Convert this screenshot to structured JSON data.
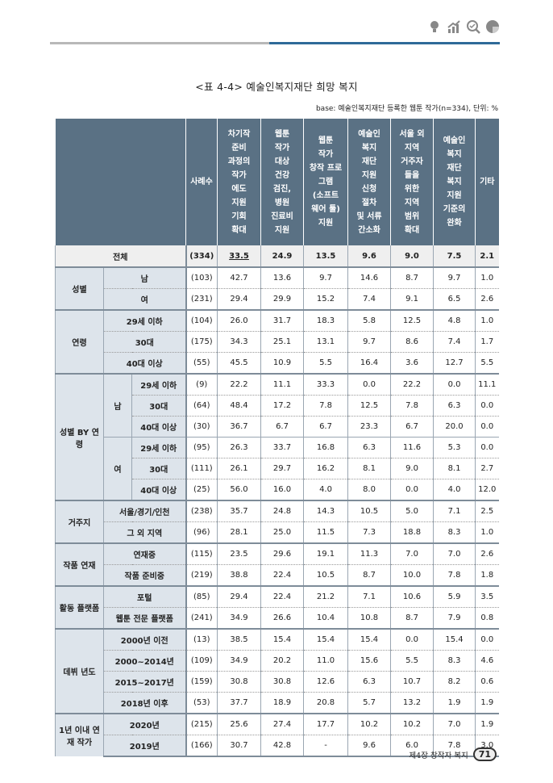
{
  "header_icons": [
    "lightbulb-icon",
    "chart-growth-icon",
    "magnifier-check-icon",
    "pie-icon"
  ],
  "title": "<표 4-4> 예술인복지재단 희망 복지",
  "base": "base: 예술인복지재단 등록한 웹툰 작가(n=334), 단위: %",
  "columns": [
    "사례수",
    "차기작 준비 과정의 작가 에도 지원 기회 확대",
    "웹툰 작가 대상 건강 검진, 병원 진료비 지원",
    "웹툰 작가 창작 프로 그램 (소프트 웨어 툴) 지원",
    "예술인 복지 재단 지원 신청 절차 및 서류 간소화",
    "서울 외 지역 거주자 들을 위한 지역 범위 확대",
    "예술인 복지 재단 복지 지원 기준의 완화",
    "기타"
  ],
  "column_lines": [
    [
      "사례수"
    ],
    [
      "차기작",
      "준비",
      "과정의",
      "작가",
      "에도",
      "지원",
      "기회",
      "확대"
    ],
    [
      "웹툰",
      "작가",
      "대상",
      "건강",
      "검진,",
      "병원",
      "진료비",
      "지원"
    ],
    [
      "웹툰",
      "작가",
      "창작 프로",
      "그램",
      "(소프트",
      "웨어 툴)",
      "지원"
    ],
    [
      "예술인",
      "복지",
      "재단",
      "지원",
      "신청",
      "절차",
      "및 서류",
      "간소화"
    ],
    [
      "서울 외",
      "지역",
      "거주자",
      "들을",
      "위한",
      "지역",
      "범위",
      "확대"
    ],
    [
      "예술인",
      "복지",
      "재단",
      "복지",
      "지원",
      "기준의",
      "완화"
    ],
    [
      "기타"
    ]
  ],
  "total": {
    "label": "전체",
    "n": "(334)",
    "values": [
      "33.5",
      "24.9",
      "13.5",
      "9.6",
      "9.0",
      "7.5",
      "2.1"
    ]
  },
  "groups": [
    {
      "label": "성별",
      "rows": [
        {
          "label": "남",
          "n": "(103)",
          "values": [
            "42.7",
            "13.6",
            "9.7",
            "14.6",
            "8.7",
            "9.7",
            "1.0"
          ]
        },
        {
          "label": "여",
          "n": "(231)",
          "values": [
            "29.4",
            "29.9",
            "15.2",
            "7.4",
            "9.1",
            "6.5",
            "2.6"
          ]
        }
      ]
    },
    {
      "label": "연령",
      "rows": [
        {
          "label": "29세 이하",
          "n": "(104)",
          "values": [
            "26.0",
            "31.7",
            "18.3",
            "5.8",
            "12.5",
            "4.8",
            "1.0"
          ]
        },
        {
          "label": "30대",
          "n": "(175)",
          "values": [
            "34.3",
            "25.1",
            "13.1",
            "9.7",
            "8.6",
            "7.4",
            "1.7"
          ]
        },
        {
          "label": "40대 이상",
          "n": "(55)",
          "values": [
            "45.5",
            "10.9",
            "5.5",
            "16.4",
            "3.6",
            "12.7",
            "5.5"
          ]
        }
      ]
    },
    {
      "label": "성별 BY 연령",
      "subgroups": [
        {
          "label": "남",
          "rows": [
            {
              "label": "29세 이하",
              "n": "(9)",
              "values": [
                "22.2",
                "11.1",
                "33.3",
                "0.0",
                "22.2",
                "0.0",
                "11.1"
              ]
            },
            {
              "label": "30대",
              "n": "(64)",
              "values": [
                "48.4",
                "17.2",
                "7.8",
                "12.5",
                "7.8",
                "6.3",
                "0.0"
              ]
            },
            {
              "label": "40대 이상",
              "n": "(30)",
              "values": [
                "36.7",
                "6.7",
                "6.7",
                "23.3",
                "6.7",
                "20.0",
                "0.0"
              ]
            }
          ]
        },
        {
          "label": "여",
          "rows": [
            {
              "label": "29세 이하",
              "n": "(95)",
              "values": [
                "26.3",
                "33.7",
                "16.8",
                "6.3",
                "11.6",
                "5.3",
                "0.0"
              ]
            },
            {
              "label": "30대",
              "n": "(111)",
              "values": [
                "26.1",
                "29.7",
                "16.2",
                "8.1",
                "9.0",
                "8.1",
                "2.7"
              ]
            },
            {
              "label": "40대 이상",
              "n": "(25)",
              "values": [
                "56.0",
                "16.0",
                "4.0",
                "8.0",
                "0.0",
                "4.0",
                "12.0"
              ]
            }
          ]
        }
      ]
    },
    {
      "label": "거주지",
      "rows": [
        {
          "label": "서울/경기/인천",
          "n": "(238)",
          "values": [
            "35.7",
            "24.8",
            "14.3",
            "10.5",
            "5.0",
            "7.1",
            "2.5"
          ]
        },
        {
          "label": "그 외 지역",
          "n": "(96)",
          "values": [
            "28.1",
            "25.0",
            "11.5",
            "7.3",
            "18.8",
            "8.3",
            "1.0"
          ]
        }
      ]
    },
    {
      "label": "작품 연재",
      "rows": [
        {
          "label": "연재중",
          "n": "(115)",
          "values": [
            "23.5",
            "29.6",
            "19.1",
            "11.3",
            "7.0",
            "7.0",
            "2.6"
          ]
        },
        {
          "label": "작품 준비중",
          "n": "(219)",
          "values": [
            "38.8",
            "22.4",
            "10.5",
            "8.7",
            "10.0",
            "7.8",
            "1.8"
          ]
        }
      ]
    },
    {
      "label": "활동 플랫폼",
      "rows": [
        {
          "label": "포털",
          "n": "(85)",
          "values": [
            "29.4",
            "22.4",
            "21.2",
            "7.1",
            "10.6",
            "5.9",
            "3.5"
          ]
        },
        {
          "label": "웹툰 전문 플랫폼",
          "n": "(241)",
          "values": [
            "34.9",
            "26.6",
            "10.4",
            "10.8",
            "8.7",
            "7.9",
            "0.8"
          ]
        }
      ]
    },
    {
      "label": "데뷔 년도",
      "rows": [
        {
          "label": "2000년 이전",
          "n": "(13)",
          "values": [
            "38.5",
            "15.4",
            "15.4",
            "15.4",
            "0.0",
            "15.4",
            "0.0"
          ]
        },
        {
          "label": "2000~2014년",
          "n": "(109)",
          "values": [
            "34.9",
            "20.2",
            "11.0",
            "15.6",
            "5.5",
            "8.3",
            "4.6"
          ]
        },
        {
          "label": "2015~2017년",
          "n": "(159)",
          "values": [
            "30.8",
            "30.8",
            "12.6",
            "6.3",
            "10.7",
            "8.2",
            "0.6"
          ]
        },
        {
          "label": "2018년 이후",
          "n": "(53)",
          "values": [
            "37.7",
            "18.9",
            "20.8",
            "5.7",
            "13.2",
            "1.9",
            "1.9"
          ]
        }
      ]
    },
    {
      "label": "1년 이내 연재 작가",
      "rows": [
        {
          "label": "2020년",
          "n": "(215)",
          "values": [
            "25.6",
            "27.4",
            "17.7",
            "10.2",
            "10.2",
            "7.0",
            "1.9"
          ]
        },
        {
          "label": "2019년",
          "n": "(166)",
          "values": [
            "30.7",
            "42.8",
            "-",
            "9.6",
            "6.0",
            "7.8",
            "3.0"
          ]
        }
      ]
    }
  ],
  "footer": {
    "chapter": "제4장 창작자 복지",
    "page": "71"
  },
  "colors": {
    "header_bg": "#5a7184",
    "label_bg": "#dde4eb",
    "accent_line": "#2f6a98"
  }
}
